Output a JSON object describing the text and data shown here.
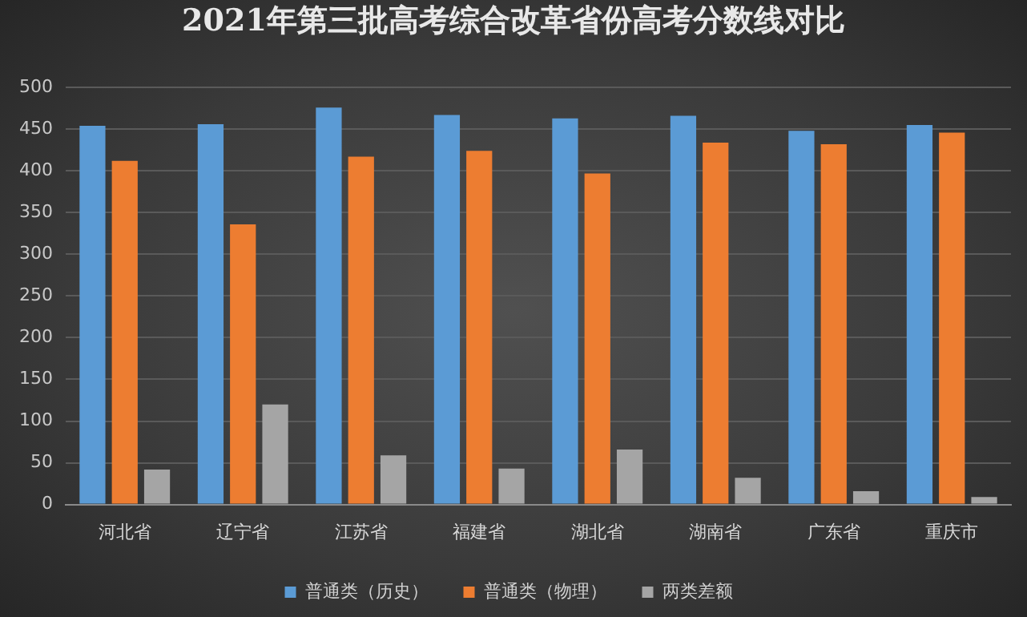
{
  "chart_data": {
    "type": "bar",
    "title": "2021年第三批高考综合改革省份高考分数线对比",
    "categories": [
      "河北省",
      "辽宁省",
      "江苏省",
      "福建省",
      "湖北省",
      "湖南省",
      "广东省",
      "重庆市"
    ],
    "series": [
      {
        "name": "普通类（历史）",
        "color": "#5b9bd5",
        "values": [
          454,
          456,
          476,
          467,
          463,
          466,
          448,
          455
        ]
      },
      {
        "name": "普通类（物理）",
        "color": "#ed7d31",
        "values": [
          412,
          336,
          417,
          424,
          397,
          434,
          432,
          446
        ]
      },
      {
        "name": "两类差额",
        "color": "#a5a5a5",
        "values": [
          42,
          120,
          59,
          43,
          66,
          32,
          16,
          9
        ]
      }
    ],
    "ylim": [
      0,
      500
    ],
    "yticks": [
      0,
      50,
      100,
      150,
      200,
      250,
      300,
      350,
      400,
      450,
      500
    ],
    "grid": "y",
    "legend": "bottom"
  }
}
